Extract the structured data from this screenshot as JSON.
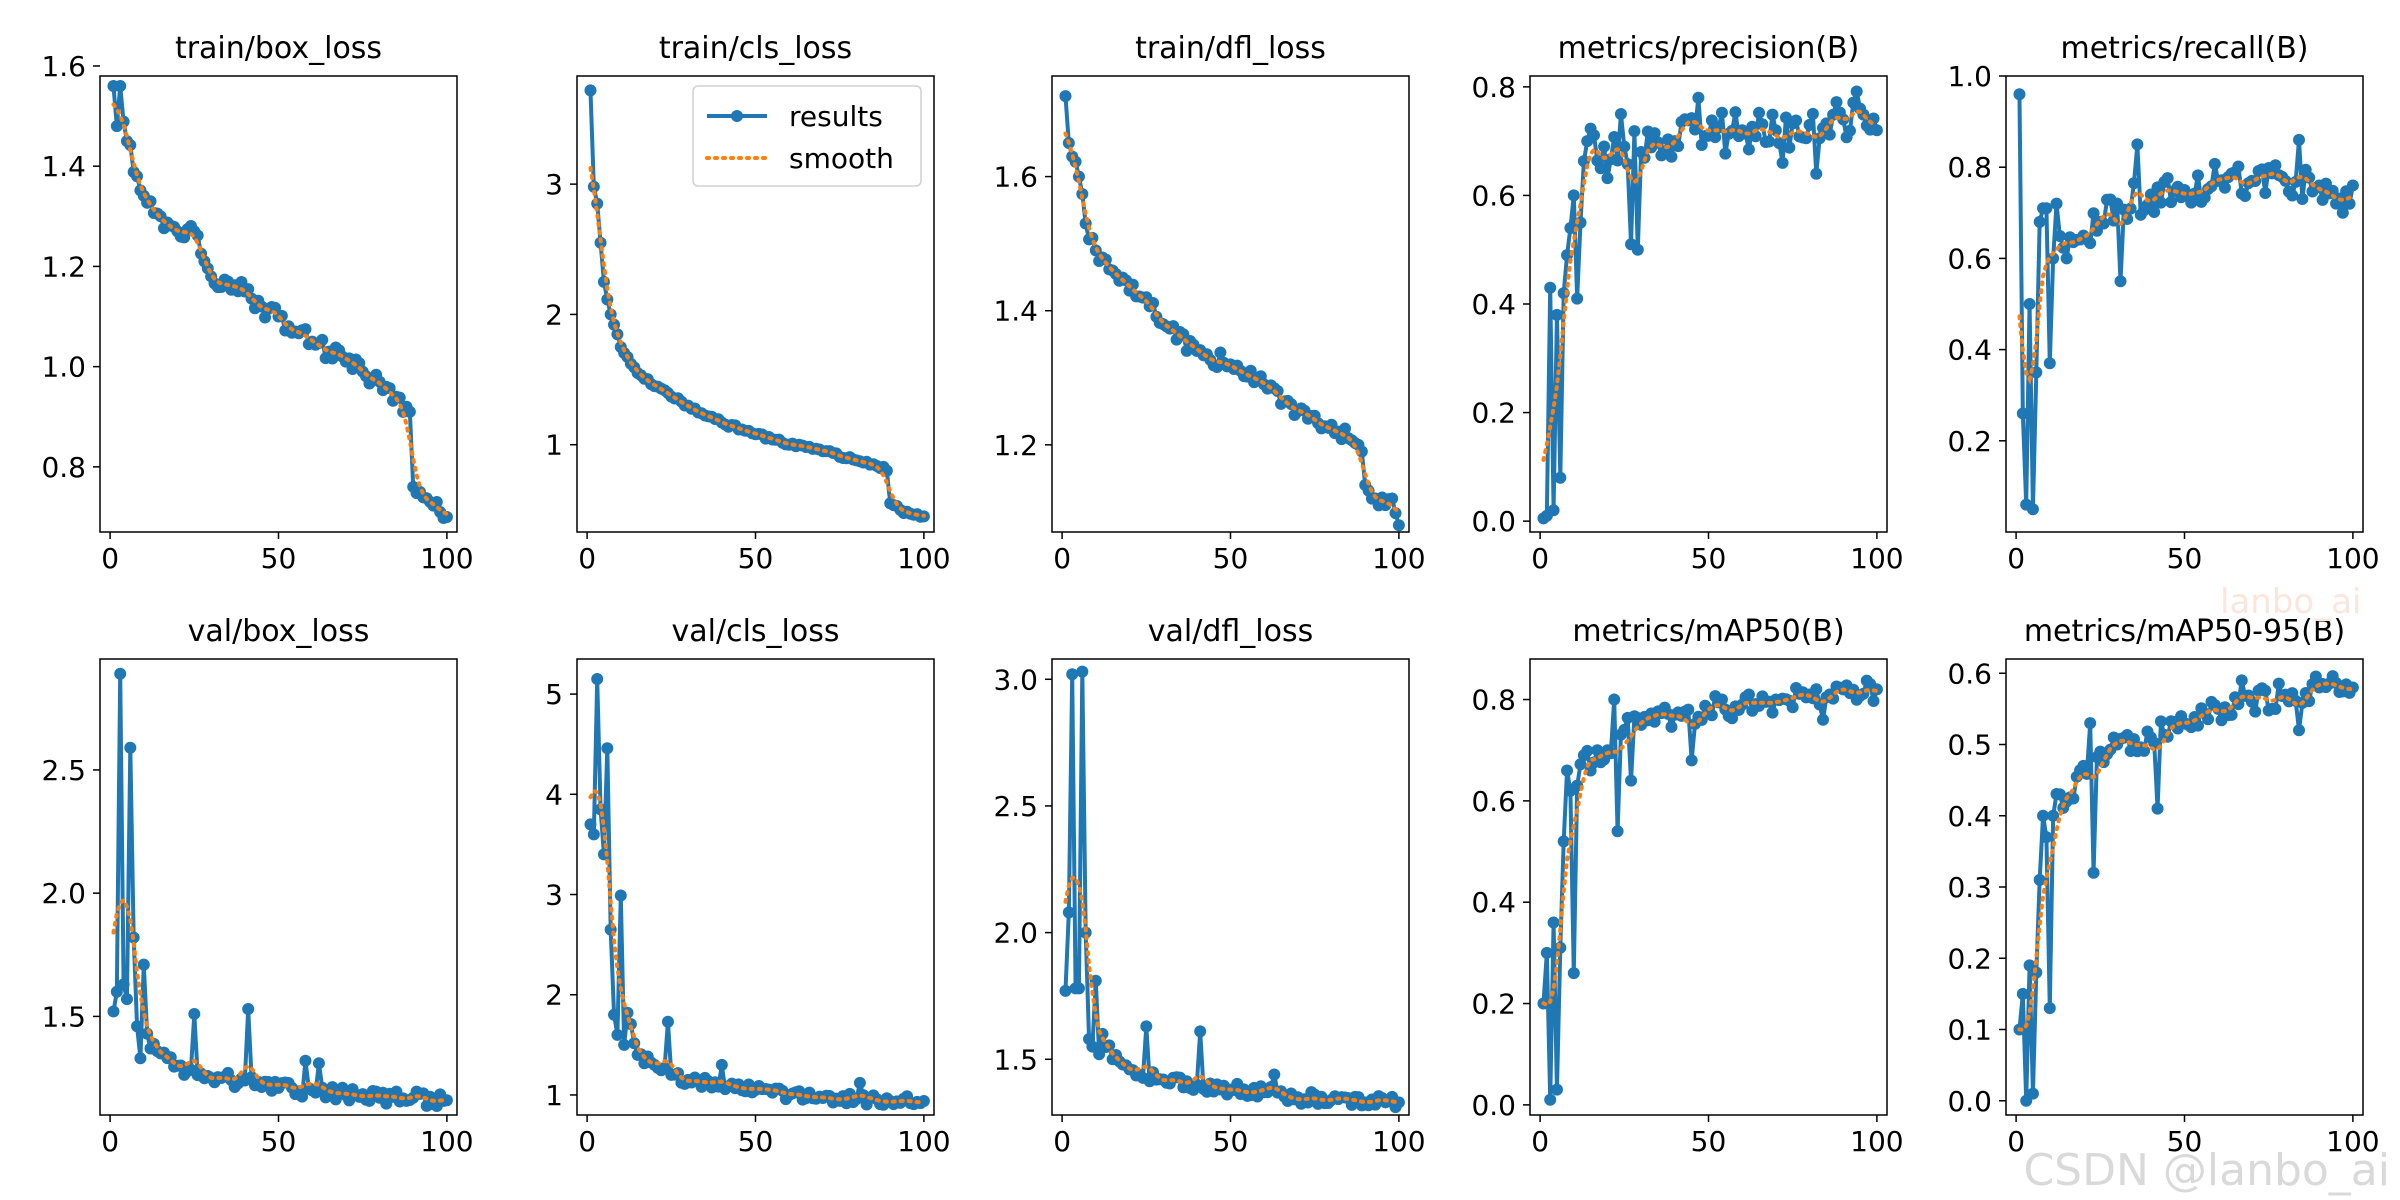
{
  "series_colors": {
    "results": "#1f77b4",
    "smooth": "#ff7f0e"
  },
  "legend": {
    "results_label": "results",
    "smooth_label": "smooth"
  },
  "watermark": {
    "text": "CSDN @lanbo_ai",
    "faint_text": "lanbo_ai"
  },
  "chart_data": [
    {
      "type": "line",
      "title": "train/box_loss",
      "xlim": [
        -3,
        103
      ],
      "ylim": [
        0.67,
        1.58
      ],
      "xticks": [
        0,
        50,
        100
      ],
      "yticks": [
        0.8,
        1.0,
        1.2,
        1.4,
        1.6
      ],
      "anchors": [
        [
          1,
          1.56
        ],
        [
          2,
          1.48
        ],
        [
          3,
          1.56
        ],
        [
          5,
          1.45
        ],
        [
          8,
          1.38
        ],
        [
          12,
          1.33
        ],
        [
          15,
          1.3
        ],
        [
          20,
          1.27
        ],
        [
          25,
          1.27
        ],
        [
          28,
          1.21
        ],
        [
          30,
          1.18
        ],
        [
          35,
          1.17
        ],
        [
          40,
          1.15
        ],
        [
          45,
          1.12
        ],
        [
          50,
          1.1
        ],
        [
          55,
          1.07
        ],
        [
          60,
          1.05
        ],
        [
          65,
          1.03
        ],
        [
          70,
          1.01
        ],
        [
          75,
          0.99
        ],
        [
          80,
          0.97
        ],
        [
          85,
          0.94
        ],
        [
          88,
          0.92
        ],
        [
          89,
          0.91
        ],
        [
          90,
          0.76
        ],
        [
          92,
          0.75
        ],
        [
          95,
          0.73
        ],
        [
          98,
          0.71
        ],
        [
          100,
          0.7
        ]
      ],
      "noise": 0.018,
      "spikes": []
    },
    {
      "type": "line",
      "title": "train/cls_loss",
      "xlim": [
        -3,
        103
      ],
      "ylim": [
        0.33,
        3.83
      ],
      "xticks": [
        0,
        50,
        100
      ],
      "yticks": [
        1,
        2,
        3
      ],
      "anchors": [
        [
          1,
          3.72
        ],
        [
          2,
          2.98
        ],
        [
          3,
          2.85
        ],
        [
          4,
          2.55
        ],
        [
          5,
          2.25
        ],
        [
          7,
          2.0
        ],
        [
          10,
          1.75
        ],
        [
          15,
          1.55
        ],
        [
          20,
          1.45
        ],
        [
          30,
          1.3
        ],
        [
          40,
          1.17
        ],
        [
          50,
          1.08
        ],
        [
          60,
          1.0
        ],
        [
          70,
          0.95
        ],
        [
          80,
          0.88
        ],
        [
          88,
          0.83
        ],
        [
          89,
          0.8
        ],
        [
          90,
          0.55
        ],
        [
          93,
          0.5
        ],
        [
          96,
          0.47
        ],
        [
          100,
          0.45
        ]
      ],
      "noise": 0.015,
      "spikes": [],
      "legend": true
    },
    {
      "type": "line",
      "title": "train/dfl_loss",
      "xlim": [
        -3,
        103
      ],
      "ylim": [
        1.07,
        1.75
      ],
      "xticks": [
        0,
        50,
        100
      ],
      "yticks": [
        1.2,
        1.4,
        1.6
      ],
      "anchors": [
        [
          1,
          1.72
        ],
        [
          2,
          1.65
        ],
        [
          3,
          1.63
        ],
        [
          5,
          1.6
        ],
        [
          7,
          1.53
        ],
        [
          10,
          1.49
        ],
        [
          15,
          1.46
        ],
        [
          20,
          1.43
        ],
        [
          25,
          1.42
        ],
        [
          30,
          1.38
        ],
        [
          40,
          1.34
        ],
        [
          50,
          1.32
        ],
        [
          60,
          1.29
        ],
        [
          70,
          1.25
        ],
        [
          80,
          1.23
        ],
        [
          85,
          1.21
        ],
        [
          88,
          1.2
        ],
        [
          89,
          1.19
        ],
        [
          90,
          1.14
        ],
        [
          93,
          1.12
        ],
        [
          96,
          1.11
        ],
        [
          98,
          1.12
        ],
        [
          100,
          1.08
        ]
      ],
      "noise": 0.012,
      "spikes": []
    },
    {
      "type": "line",
      "title": "metrics/precision(B)",
      "xlim": [
        -3,
        103
      ],
      "ylim": [
        -0.02,
        0.82
      ],
      "xticks": [
        0,
        50,
        100
      ],
      "yticks": [
        0.0,
        0.2,
        0.4,
        0.6,
        0.8
      ],
      "anchors": [
        [
          1,
          0.005
        ],
        [
          2,
          0.01
        ],
        [
          3,
          0.43
        ],
        [
          4,
          0.02
        ],
        [
          5,
          0.38
        ],
        [
          6,
          0.08
        ],
        [
          7,
          0.42
        ],
        [
          8,
          0.49
        ],
        [
          9,
          0.54
        ],
        [
          10,
          0.6
        ],
        [
          11,
          0.41
        ],
        [
          12,
          0.55
        ],
        [
          14,
          0.7
        ],
        [
          18,
          0.65
        ],
        [
          25,
          0.69
        ],
        [
          30,
          0.68
        ],
        [
          40,
          0.7
        ],
        [
          50,
          0.71
        ],
        [
          60,
          0.72
        ],
        [
          70,
          0.72
        ],
        [
          80,
          0.73
        ],
        [
          90,
          0.74
        ],
        [
          95,
          0.76
        ],
        [
          100,
          0.72
        ]
      ],
      "noise": 0.04,
      "spikes": [
        [
          27,
          0.51
        ],
        [
          29,
          0.5
        ],
        [
          24,
          0.75
        ],
        [
          47,
          0.78
        ],
        [
          72,
          0.66
        ],
        [
          82,
          0.64
        ]
      ]
    },
    {
      "type": "line",
      "title": "metrics/recall(B)",
      "xlim": [
        -3,
        103
      ],
      "ylim": [
        0.0,
        1.0
      ],
      "xticks": [
        0,
        50,
        100
      ],
      "yticks": [
        0.2,
        0.4,
        0.6,
        0.8,
        1.0
      ],
      "anchors": [
        [
          1,
          0.96
        ],
        [
          2,
          0.26
        ],
        [
          3,
          0.06
        ],
        [
          4,
          0.5
        ],
        [
          5,
          0.05
        ],
        [
          6,
          0.35
        ],
        [
          7,
          0.68
        ],
        [
          8,
          0.71
        ],
        [
          9,
          0.71
        ],
        [
          10,
          0.37
        ],
        [
          11,
          0.6
        ],
        [
          12,
          0.72
        ],
        [
          15,
          0.6
        ],
        [
          20,
          0.65
        ],
        [
          25,
          0.68
        ],
        [
          30,
          0.72
        ],
        [
          40,
          0.74
        ],
        [
          50,
          0.75
        ],
        [
          60,
          0.77
        ],
        [
          70,
          0.77
        ],
        [
          80,
          0.77
        ],
        [
          90,
          0.76
        ],
        [
          95,
          0.72
        ],
        [
          100,
          0.76
        ]
      ],
      "noise": 0.04,
      "spikes": [
        [
          36,
          0.85
        ],
        [
          84,
          0.86
        ],
        [
          31,
          0.55
        ],
        [
          97,
          0.7
        ]
      ]
    },
    {
      "type": "line",
      "title": "val/box_loss",
      "xlim": [
        -3,
        103
      ],
      "ylim": [
        1.1,
        2.95
      ],
      "xticks": [
        0,
        50,
        100
      ],
      "yticks": [
        1.5,
        2.0,
        2.5
      ],
      "anchors": [
        [
          1,
          1.52
        ],
        [
          2,
          1.6
        ],
        [
          3,
          2.89
        ],
        [
          4,
          1.63
        ],
        [
          5,
          1.57
        ],
        [
          6,
          2.59
        ],
        [
          7,
          1.82
        ],
        [
          8,
          1.46
        ],
        [
          9,
          1.33
        ],
        [
          10,
          1.71
        ],
        [
          11,
          1.43
        ],
        [
          12,
          1.37
        ],
        [
          15,
          1.35
        ],
        [
          20,
          1.3
        ],
        [
          30,
          1.25
        ],
        [
          40,
          1.24
        ],
        [
          50,
          1.21
        ],
        [
          60,
          1.2
        ],
        [
          70,
          1.18
        ],
        [
          80,
          1.17
        ],
        [
          90,
          1.17
        ],
        [
          100,
          1.16
        ]
      ],
      "noise": 0.03,
      "spikes": [
        [
          25,
          1.51
        ],
        [
          41,
          1.53
        ],
        [
          58,
          1.32
        ],
        [
          62,
          1.31
        ]
      ]
    },
    {
      "type": "line",
      "title": "val/cls_loss",
      "xlim": [
        -3,
        103
      ],
      "ylim": [
        0.8,
        5.35
      ],
      "xticks": [
        0,
        50,
        100
      ],
      "yticks": [
        1,
        2,
        3,
        4,
        5
      ],
      "anchors": [
        [
          1,
          3.7
        ],
        [
          2,
          3.6
        ],
        [
          3,
          5.15
        ],
        [
          4,
          3.85
        ],
        [
          5,
          3.4
        ],
        [
          6,
          4.46
        ],
        [
          7,
          2.65
        ],
        [
          8,
          1.8
        ],
        [
          9,
          1.6
        ],
        [
          10,
          2.99
        ],
        [
          11,
          1.5
        ],
        [
          12,
          1.82
        ],
        [
          15,
          1.4
        ],
        [
          20,
          1.3
        ],
        [
          25,
          1.2
        ],
        [
          30,
          1.15
        ],
        [
          40,
          1.1
        ],
        [
          50,
          1.05
        ],
        [
          60,
          1.0
        ],
        [
          70,
          0.97
        ],
        [
          80,
          0.96
        ],
        [
          90,
          0.94
        ],
        [
          100,
          0.94
        ]
      ],
      "noise": 0.05,
      "spikes": [
        [
          24,
          1.73
        ],
        [
          40,
          1.3
        ],
        [
          81,
          1.12
        ]
      ]
    },
    {
      "type": "line",
      "title": "val/dfl_loss",
      "xlim": [
        -3,
        103
      ],
      "ylim": [
        1.28,
        3.08
      ],
      "xticks": [
        0,
        50,
        100
      ],
      "yticks": [
        1.5,
        2.0,
        2.5,
        3.0
      ],
      "anchors": [
        [
          1,
          1.77
        ],
        [
          2,
          2.08
        ],
        [
          3,
          3.02
        ],
        [
          4,
          1.78
        ],
        [
          5,
          1.78
        ],
        [
          6,
          3.03
        ],
        [
          7,
          2.0
        ],
        [
          8,
          1.58
        ],
        [
          9,
          1.55
        ],
        [
          10,
          1.81
        ],
        [
          11,
          1.52
        ],
        [
          12,
          1.6
        ],
        [
          15,
          1.5
        ],
        [
          20,
          1.46
        ],
        [
          30,
          1.42
        ],
        [
          40,
          1.4
        ],
        [
          50,
          1.38
        ],
        [
          60,
          1.37
        ],
        [
          70,
          1.35
        ],
        [
          80,
          1.34
        ],
        [
          90,
          1.33
        ],
        [
          100,
          1.33
        ]
      ],
      "noise": 0.025,
      "spikes": [
        [
          25,
          1.63
        ],
        [
          41,
          1.61
        ],
        [
          63,
          1.44
        ]
      ]
    },
    {
      "type": "line",
      "title": "metrics/mAP50(B)",
      "xlim": [
        -3,
        103
      ],
      "ylim": [
        -0.02,
        0.88
      ],
      "xticks": [
        0,
        50,
        100
      ],
      "yticks": [
        0.0,
        0.2,
        0.4,
        0.6,
        0.8
      ],
      "anchors": [
        [
          1,
          0.2
        ],
        [
          2,
          0.3
        ],
        [
          3,
          0.01
        ],
        [
          4,
          0.36
        ],
        [
          5,
          0.03
        ],
        [
          6,
          0.31
        ],
        [
          7,
          0.52
        ],
        [
          8,
          0.66
        ],
        [
          9,
          0.62
        ],
        [
          10,
          0.26
        ],
        [
          11,
          0.63
        ],
        [
          13,
          0.69
        ],
        [
          15,
          0.66
        ],
        [
          20,
          0.7
        ],
        [
          25,
          0.74
        ],
        [
          30,
          0.75
        ],
        [
          40,
          0.77
        ],
        [
          50,
          0.78
        ],
        [
          60,
          0.79
        ],
        [
          70,
          0.8
        ],
        [
          80,
          0.81
        ],
        [
          90,
          0.82
        ],
        [
          100,
          0.82
        ]
      ],
      "noise": 0.025,
      "spikes": [
        [
          23,
          0.54
        ],
        [
          22,
          0.8
        ],
        [
          27,
          0.64
        ],
        [
          45,
          0.68
        ],
        [
          84,
          0.76
        ]
      ]
    },
    {
      "type": "line",
      "title": "metrics/mAP50-95(B)",
      "xlim": [
        -3,
        103
      ],
      "ylim": [
        -0.02,
        0.62
      ],
      "xticks": [
        0,
        50,
        100
      ],
      "yticks": [
        0.0,
        0.1,
        0.2,
        0.3,
        0.4,
        0.5,
        0.6
      ],
      "anchors": [
        [
          1,
          0.1
        ],
        [
          2,
          0.15
        ],
        [
          3,
          0.0
        ],
        [
          4,
          0.19
        ],
        [
          5,
          0.01
        ],
        [
          6,
          0.18
        ],
        [
          7,
          0.31
        ],
        [
          8,
          0.4
        ],
        [
          9,
          0.37
        ],
        [
          10,
          0.13
        ],
        [
          11,
          0.4
        ],
        [
          13,
          0.43
        ],
        [
          15,
          0.42
        ],
        [
          20,
          0.47
        ],
        [
          25,
          0.49
        ],
        [
          30,
          0.5
        ],
        [
          40,
          0.51
        ],
        [
          50,
          0.53
        ],
        [
          60,
          0.55
        ],
        [
          70,
          0.56
        ],
        [
          80,
          0.57
        ],
        [
          90,
          0.58
        ],
        [
          100,
          0.58
        ]
      ],
      "noise": 0.018,
      "spikes": [
        [
          23,
          0.32
        ],
        [
          22,
          0.53
        ],
        [
          42,
          0.41
        ],
        [
          84,
          0.52
        ],
        [
          67,
          0.59
        ]
      ]
    }
  ]
}
